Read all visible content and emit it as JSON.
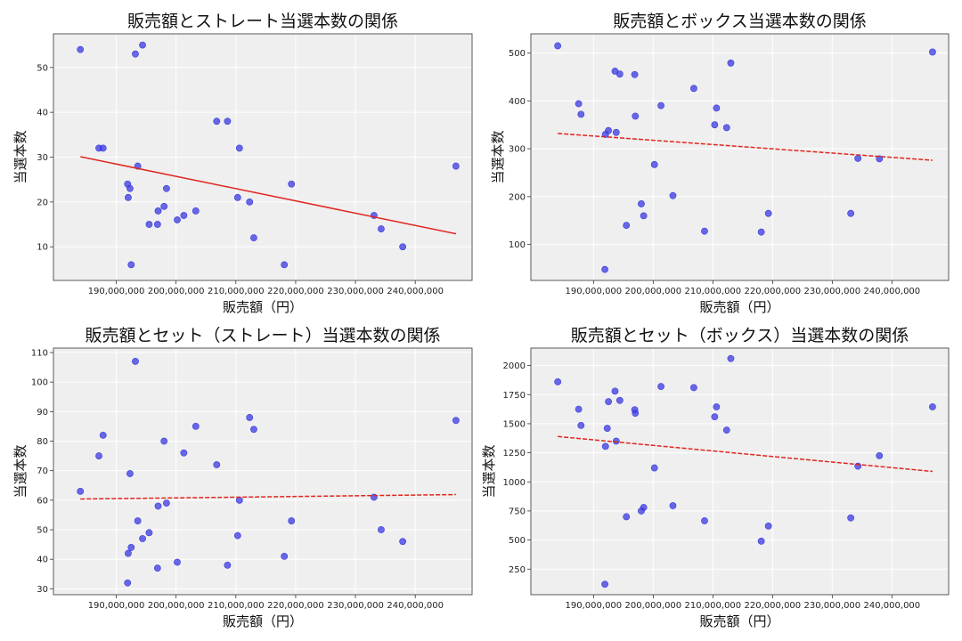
{
  "colors": {
    "point": "#3a3ae0",
    "trend": "#e0261f",
    "plot_bg": "#efefef",
    "grid": "#ffffff"
  },
  "chart_data": [
    {
      "type": "scatter",
      "title": "販売額とストレート当選本数の関係",
      "xlabel": "販売額（円）",
      "ylabel": "当選本数",
      "xlim": [
        179500000,
        249500000
      ],
      "ylim": [
        2.5,
        57.5
      ],
      "xticks": [
        190000000,
        200000000,
        210000000,
        220000000,
        230000000,
        240000000
      ],
      "xtick_labels": [
        "190,000,000",
        "200,000,000",
        "210,000,000",
        "220,000,000",
        "230,000,000",
        "240,000,000"
      ],
      "yticks": [
        10,
        20,
        30,
        40,
        50
      ],
      "ytick_labels": [
        "10",
        "20",
        "30",
        "40",
        "50"
      ],
      "grid": true,
      "points": [
        {
          "x": 184000000,
          "y": 54
        },
        {
          "x": 187100000,
          "y": 32
        },
        {
          "x": 187800000,
          "y": 32
        },
        {
          "x": 191900000,
          "y": 24
        },
        {
          "x": 192000000,
          "y": 21
        },
        {
          "x": 192300000,
          "y": 23
        },
        {
          "x": 192500000,
          "y": 6
        },
        {
          "x": 193200000,
          "y": 53
        },
        {
          "x": 193600000,
          "y": 28
        },
        {
          "x": 194400000,
          "y": 55
        },
        {
          "x": 195500000,
          "y": 15
        },
        {
          "x": 196900000,
          "y": 15
        },
        {
          "x": 197000000,
          "y": 18
        },
        {
          "x": 198000000,
          "y": 19
        },
        {
          "x": 198400000,
          "y": 23
        },
        {
          "x": 200200000,
          "y": 16
        },
        {
          "x": 201300000,
          "y": 17
        },
        {
          "x": 203300000,
          "y": 18
        },
        {
          "x": 206800000,
          "y": 38
        },
        {
          "x": 208600000,
          "y": 38
        },
        {
          "x": 210300000,
          "y": 21
        },
        {
          "x": 210600000,
          "y": 32
        },
        {
          "x": 212300000,
          "y": 20
        },
        {
          "x": 213000000,
          "y": 12
        },
        {
          "x": 218100000,
          "y": 6
        },
        {
          "x": 219300000,
          "y": 24
        },
        {
          "x": 233100000,
          "y": 17
        },
        {
          "x": 234300000,
          "y": 14
        },
        {
          "x": 237900000,
          "y": 10
        },
        {
          "x": 246800000,
          "y": 28
        }
      ],
      "trendline": {
        "x": [
          184000000,
          246800000
        ],
        "y": [
          30.1,
          12.9
        ],
        "style": "solid"
      }
    },
    {
      "type": "scatter",
      "title": "販売額とボックス当選本数の関係",
      "xlabel": "販売額（円）",
      "ylabel": "当選本数",
      "xlim": [
        179500000,
        249500000
      ],
      "ylim": [
        25,
        540
      ],
      "xticks": [
        190000000,
        200000000,
        210000000,
        220000000,
        230000000,
        240000000
      ],
      "xtick_labels": [
        "190,000,000",
        "200,000,000",
        "210,000,000",
        "220,000,000",
        "230,000,000",
        "240,000,000"
      ],
      "yticks": [
        100,
        200,
        300,
        400,
        500
      ],
      "ytick_labels": [
        "100",
        "200",
        "300",
        "400",
        "500"
      ],
      "grid": true,
      "points": [
        {
          "x": 184000000,
          "y": 515
        },
        {
          "x": 187500000,
          "y": 394
        },
        {
          "x": 187900000,
          "y": 372
        },
        {
          "x": 191900000,
          "y": 48
        },
        {
          "x": 192000000,
          "y": 330
        },
        {
          "x": 192500000,
          "y": 338
        },
        {
          "x": 193600000,
          "y": 462
        },
        {
          "x": 193800000,
          "y": 334
        },
        {
          "x": 194400000,
          "y": 456
        },
        {
          "x": 195500000,
          "y": 140
        },
        {
          "x": 196900000,
          "y": 455
        },
        {
          "x": 197000000,
          "y": 368
        },
        {
          "x": 198000000,
          "y": 185
        },
        {
          "x": 198400000,
          "y": 160
        },
        {
          "x": 200200000,
          "y": 267
        },
        {
          "x": 201300000,
          "y": 390
        },
        {
          "x": 203300000,
          "y": 202
        },
        {
          "x": 206800000,
          "y": 426
        },
        {
          "x": 208600000,
          "y": 128
        },
        {
          "x": 210300000,
          "y": 350
        },
        {
          "x": 210600000,
          "y": 385
        },
        {
          "x": 212300000,
          "y": 344
        },
        {
          "x": 213000000,
          "y": 479
        },
        {
          "x": 218100000,
          "y": 126
        },
        {
          "x": 219300000,
          "y": 165
        },
        {
          "x": 233100000,
          "y": 165
        },
        {
          "x": 234300000,
          "y": 280
        },
        {
          "x": 237900000,
          "y": 279
        },
        {
          "x": 246800000,
          "y": 502
        }
      ],
      "trendline": {
        "x": [
          184000000,
          246800000
        ],
        "y": [
          332,
          276
        ],
        "style": "dashed"
      }
    },
    {
      "type": "scatter",
      "title": "販売額とセット（ストレート）当選本数の関係",
      "xlabel": "販売額（円）",
      "ylabel": "当選本数",
      "xlim": [
        179500000,
        249500000
      ],
      "ylim": [
        28,
        111.5
      ],
      "xticks": [
        190000000,
        200000000,
        210000000,
        220000000,
        230000000,
        240000000
      ],
      "xtick_labels": [
        "190,000,000",
        "200,000,000",
        "210,000,000",
        "220,000,000",
        "230,000,000",
        "240,000,000"
      ],
      "yticks": [
        30,
        40,
        50,
        60,
        70,
        80,
        90,
        100,
        110
      ],
      "ytick_labels": [
        "30",
        "40",
        "50",
        "60",
        "70",
        "80",
        "90",
        "100",
        "110"
      ],
      "grid": true,
      "points": [
        {
          "x": 184000000,
          "y": 63
        },
        {
          "x": 187100000,
          "y": 75
        },
        {
          "x": 187800000,
          "y": 82
        },
        {
          "x": 191900000,
          "y": 32
        },
        {
          "x": 192000000,
          "y": 42
        },
        {
          "x": 192300000,
          "y": 69
        },
        {
          "x": 192500000,
          "y": 44
        },
        {
          "x": 193200000,
          "y": 107
        },
        {
          "x": 193600000,
          "y": 53
        },
        {
          "x": 194400000,
          "y": 47
        },
        {
          "x": 195500000,
          "y": 49
        },
        {
          "x": 196900000,
          "y": 37
        },
        {
          "x": 197000000,
          "y": 58
        },
        {
          "x": 198000000,
          "y": 80
        },
        {
          "x": 198400000,
          "y": 59
        },
        {
          "x": 200200000,
          "y": 39
        },
        {
          "x": 201300000,
          "y": 76
        },
        {
          "x": 203300000,
          "y": 85
        },
        {
          "x": 206800000,
          "y": 72
        },
        {
          "x": 208600000,
          "y": 38
        },
        {
          "x": 210300000,
          "y": 48
        },
        {
          "x": 210600000,
          "y": 60
        },
        {
          "x": 212300000,
          "y": 88
        },
        {
          "x": 213000000,
          "y": 84
        },
        {
          "x": 218100000,
          "y": 41
        },
        {
          "x": 219300000,
          "y": 53
        },
        {
          "x": 233100000,
          "y": 61
        },
        {
          "x": 234300000,
          "y": 50
        },
        {
          "x": 237900000,
          "y": 46
        },
        {
          "x": 246800000,
          "y": 87
        }
      ],
      "trendline": {
        "x": [
          184000000,
          246800000
        ],
        "y": [
          60.4,
          61.9
        ],
        "style": "dashed"
      }
    },
    {
      "type": "scatter",
      "title": "販売額とセット（ボックス）当選本数の関係",
      "xlabel": "販売額（円）",
      "ylabel": "当選本数",
      "xlim": [
        179500000,
        249500000
      ],
      "ylim": [
        30,
        2150
      ],
      "xticks": [
        190000000,
        200000000,
        210000000,
        220000000,
        230000000,
        240000000
      ],
      "xtick_labels": [
        "190,000,000",
        "200,000,000",
        "210,000,000",
        "220,000,000",
        "230,000,000",
        "240,000,000"
      ],
      "yticks": [
        250,
        500,
        750,
        1000,
        1250,
        1500,
        1750,
        2000
      ],
      "ytick_labels": [
        "250",
        "500",
        "750",
        "1000",
        "1250",
        "1500",
        "1750",
        "2000"
      ],
      "grid": true,
      "points": [
        {
          "x": 184000000,
          "y": 1860
        },
        {
          "x": 187500000,
          "y": 1625
        },
        {
          "x": 187900000,
          "y": 1485
        },
        {
          "x": 191900000,
          "y": 120
        },
        {
          "x": 192000000,
          "y": 1305
        },
        {
          "x": 192300000,
          "y": 1460
        },
        {
          "x": 192500000,
          "y": 1690
        },
        {
          "x": 193600000,
          "y": 1780
        },
        {
          "x": 193800000,
          "y": 1350
        },
        {
          "x": 194400000,
          "y": 1700
        },
        {
          "x": 195500000,
          "y": 700
        },
        {
          "x": 196900000,
          "y": 1620
        },
        {
          "x": 197000000,
          "y": 1590
        },
        {
          "x": 198000000,
          "y": 750
        },
        {
          "x": 198400000,
          "y": 780
        },
        {
          "x": 200200000,
          "y": 1120
        },
        {
          "x": 201300000,
          "y": 1820
        },
        {
          "x": 203300000,
          "y": 795
        },
        {
          "x": 206800000,
          "y": 1810
        },
        {
          "x": 208600000,
          "y": 665
        },
        {
          "x": 210300000,
          "y": 1560
        },
        {
          "x": 210600000,
          "y": 1645
        },
        {
          "x": 212300000,
          "y": 1445
        },
        {
          "x": 213000000,
          "y": 2060
        },
        {
          "x": 218100000,
          "y": 490
        },
        {
          "x": 219300000,
          "y": 620
        },
        {
          "x": 233100000,
          "y": 690
        },
        {
          "x": 234300000,
          "y": 1135
        },
        {
          "x": 237900000,
          "y": 1225
        },
        {
          "x": 246800000,
          "y": 1645
        }
      ],
      "trendline": {
        "x": [
          184000000,
          246800000
        ],
        "y": [
          1390,
          1090
        ],
        "style": "dashed"
      }
    }
  ]
}
